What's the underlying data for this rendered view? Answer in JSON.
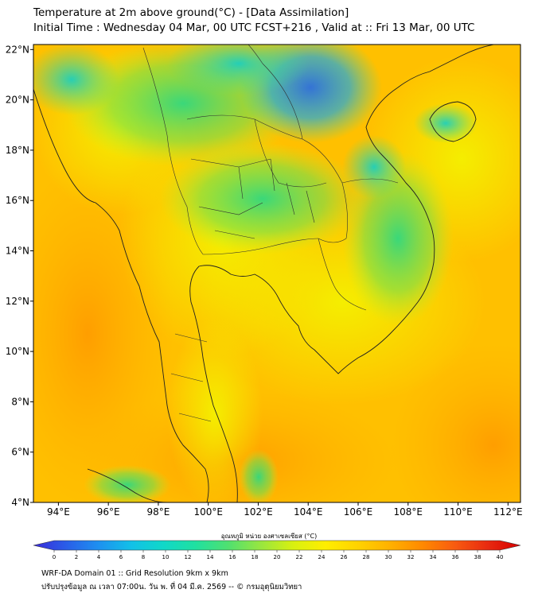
{
  "title": {
    "line1": "Temperature at 2m above ground(°C) - [Data Assimilation]",
    "line2": "Initial Time : Wednesday 04 Mar, 00 UTC FCST+216 , Valid at :: Fri 13 Mar, 00 UTC"
  },
  "map": {
    "lon_labels": [
      "94°E",
      "96°E",
      "98°E",
      "100°E",
      "102°E",
      "104°E",
      "106°E",
      "108°E",
      "110°E",
      "112°E"
    ],
    "lat_labels": [
      "22°N",
      "20°N",
      "18°N",
      "16°N",
      "14°N",
      "12°N",
      "10°N",
      "8°N",
      "6°N",
      "4°N"
    ],
    "lon_range": [
      93,
      112.5
    ],
    "lat_range": [
      4,
      22.2
    ]
  },
  "colorbar": {
    "label": "อุณหภูมิ หน่วย องศาเซลเซียส (°C)",
    "ticks": [
      "0",
      "2",
      "4",
      "6",
      "8",
      "10",
      "12",
      "14",
      "16",
      "18",
      "20",
      "22",
      "24",
      "26",
      "28",
      "30",
      "32",
      "34",
      "36",
      "38",
      "40"
    ],
    "colors": [
      "#3a2bd8",
      "#2a5de8",
      "#1e90f0",
      "#12c0e8",
      "#10d8c8",
      "#20e0a0",
      "#50e070",
      "#98e640",
      "#d8f010",
      "#ffee00",
      "#ffd200",
      "#ffb000",
      "#ff8800",
      "#f85a10",
      "#e82a10",
      "#d80000"
    ]
  },
  "footer": {
    "line1": "WRF-DA Domain 01 :: Grid Resolution 9km x 9km",
    "line2": "ปรับปรุงข้อมูล ณ เวลา 07:00น. วัน พ. ที่ 04 มี.ค. 2569 -- © กรมอุตุนิยมวิทยา"
  }
}
